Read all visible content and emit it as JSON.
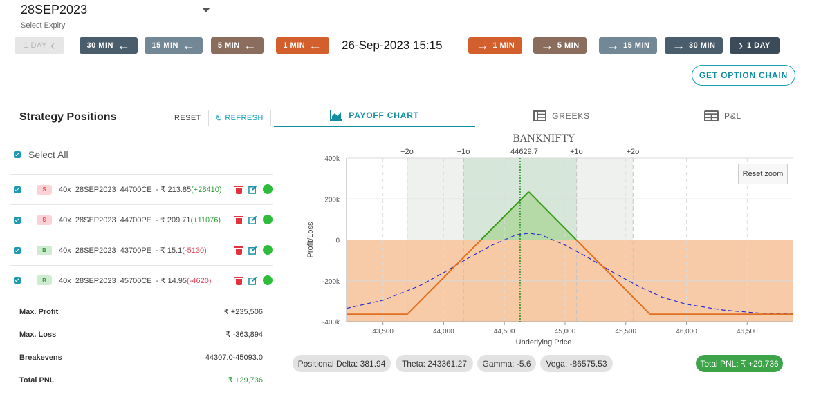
{
  "expiry": {
    "value": "28SEP2023",
    "label": "Select Expiry"
  },
  "time_controls": {
    "back": [
      {
        "label": "1 DAY",
        "disabled": true
      },
      {
        "label": "30 MIN"
      },
      {
        "label": "15 MIN"
      },
      {
        "label": "5 MIN"
      },
      {
        "label": "1 MIN"
      }
    ],
    "datetime": "26-Sep-2023 15:15",
    "forward": [
      {
        "label": "1 MIN"
      },
      {
        "label": "5 MIN"
      },
      {
        "label": "15 MIN"
      },
      {
        "label": "30 MIN"
      },
      {
        "label": "1 DAY"
      }
    ]
  },
  "option_chain_label": "GET OPTION CHAIN",
  "panel": {
    "title": "Strategy Positions",
    "reset_label": "RESET",
    "refresh_label": "REFRESH",
    "select_all_label": "Select All"
  },
  "positions": [
    {
      "side": "S",
      "qty": "40x",
      "expiry": "28SEP2023",
      "strike": "44700CE",
      "price": "- ₹ 213.85",
      "pnl": "(+28410)",
      "pnl_sign": "pos"
    },
    {
      "side": "S",
      "qty": "40x",
      "expiry": "28SEP2023",
      "strike": "44700PE",
      "price": "- ₹ 209.71",
      "pnl": "(+11076)",
      "pnl_sign": "pos"
    },
    {
      "side": "B",
      "qty": "40x",
      "expiry": "28SEP2023",
      "strike": "43700PE",
      "price": "- ₹ 15.1",
      "pnl": "(-5130)",
      "pnl_sign": "neg"
    },
    {
      "side": "B",
      "qty": "40x",
      "expiry": "28SEP2023",
      "strike": "45700CE",
      "price": "- ₹ 14.95",
      "pnl": "(-4620)",
      "pnl_sign": "neg"
    }
  ],
  "summary": {
    "max_profit": {
      "label": "Max. Profit",
      "value": "₹ +235,506"
    },
    "max_loss": {
      "label": "Max. Loss",
      "value": "₹ -363,894"
    },
    "breakevens": {
      "label": "Breakevens",
      "value": "44307.0-45093.0"
    },
    "total_pnl": {
      "label": "Total PNL",
      "value": "₹ +29,736"
    }
  },
  "tabs": [
    {
      "label": "PAYOFF CHART",
      "icon": "area-chart-icon",
      "active": true
    },
    {
      "label": "GREEKS",
      "icon": "table-list-icon",
      "active": false
    },
    {
      "label": "P&L",
      "icon": "grid-table-icon",
      "active": false
    }
  ],
  "reset_zoom_label": "Reset zoom",
  "greeks": {
    "delta": "Positional Delta: 381.94",
    "theta": "Theta: 243361.27",
    "gamma": "Gamma: -5.6",
    "vega": "Vega: -86575.53",
    "total_pnl": "Total PNL: ₹ +29,736"
  },
  "colors": {
    "payoff_expiry": "#3a9c1c",
    "payoff_loss": "#e07020",
    "payoff_target": "#2a2ad0",
    "spot_line": "#118a11",
    "profit_fill": "#b4d9a4",
    "loss_fill": "#f7c8a2"
  },
  "chart_data": {
    "type": "line",
    "title": "BANKNIFTY",
    "xlabel": "Underlying Price",
    "ylabel": "Profit/Loss",
    "xlim": [
      43200,
      46880
    ],
    "ylim": [
      -400000,
      400000
    ],
    "x_ticks": [
      43500,
      44000,
      44500,
      45000,
      45500,
      46000,
      46500
    ],
    "x_tick_labels": [
      "43,500",
      "44,000",
      "44,500",
      "45,000",
      "45,500",
      "46,000",
      "46,500"
    ],
    "y_ticks": [
      -400000,
      -200000,
      0,
      200000,
      400000
    ],
    "y_tick_labels": [
      "-400k",
      "-200k",
      "0",
      "200k",
      "400k"
    ],
    "spot": 44629.7,
    "spot_label": "44629.7",
    "sigma_levels": [
      {
        "label": "−2σ",
        "x": 43700
      },
      {
        "label": "−1σ",
        "x": 44165
      },
      {
        "label": "+1σ",
        "x": 45095
      },
      {
        "label": "+2σ",
        "x": 45560
      }
    ],
    "grid": true,
    "series": [
      {
        "style": "solid",
        "x": [
          43200,
          43700,
          44307,
          44700,
          45093,
          45700,
          46880
        ],
        "y": [
          -363894,
          -363894,
          0,
          235506,
          0,
          -363894,
          -363894
        ]
      },
      {
        "style": "dashed",
        "x": [
          43200,
          43500,
          43800,
          44000,
          44200,
          44400,
          44600,
          44700,
          44800,
          45000,
          45200,
          45400,
          45600,
          45800,
          46000,
          46300,
          46600,
          46880
        ],
        "y": [
          -335000,
          -295000,
          -225000,
          -160000,
          -90000,
          -25000,
          25000,
          32000,
          25000,
          -25000,
          -90000,
          -160000,
          -225000,
          -280000,
          -315000,
          -343000,
          -358000,
          -362000
        ]
      }
    ]
  }
}
